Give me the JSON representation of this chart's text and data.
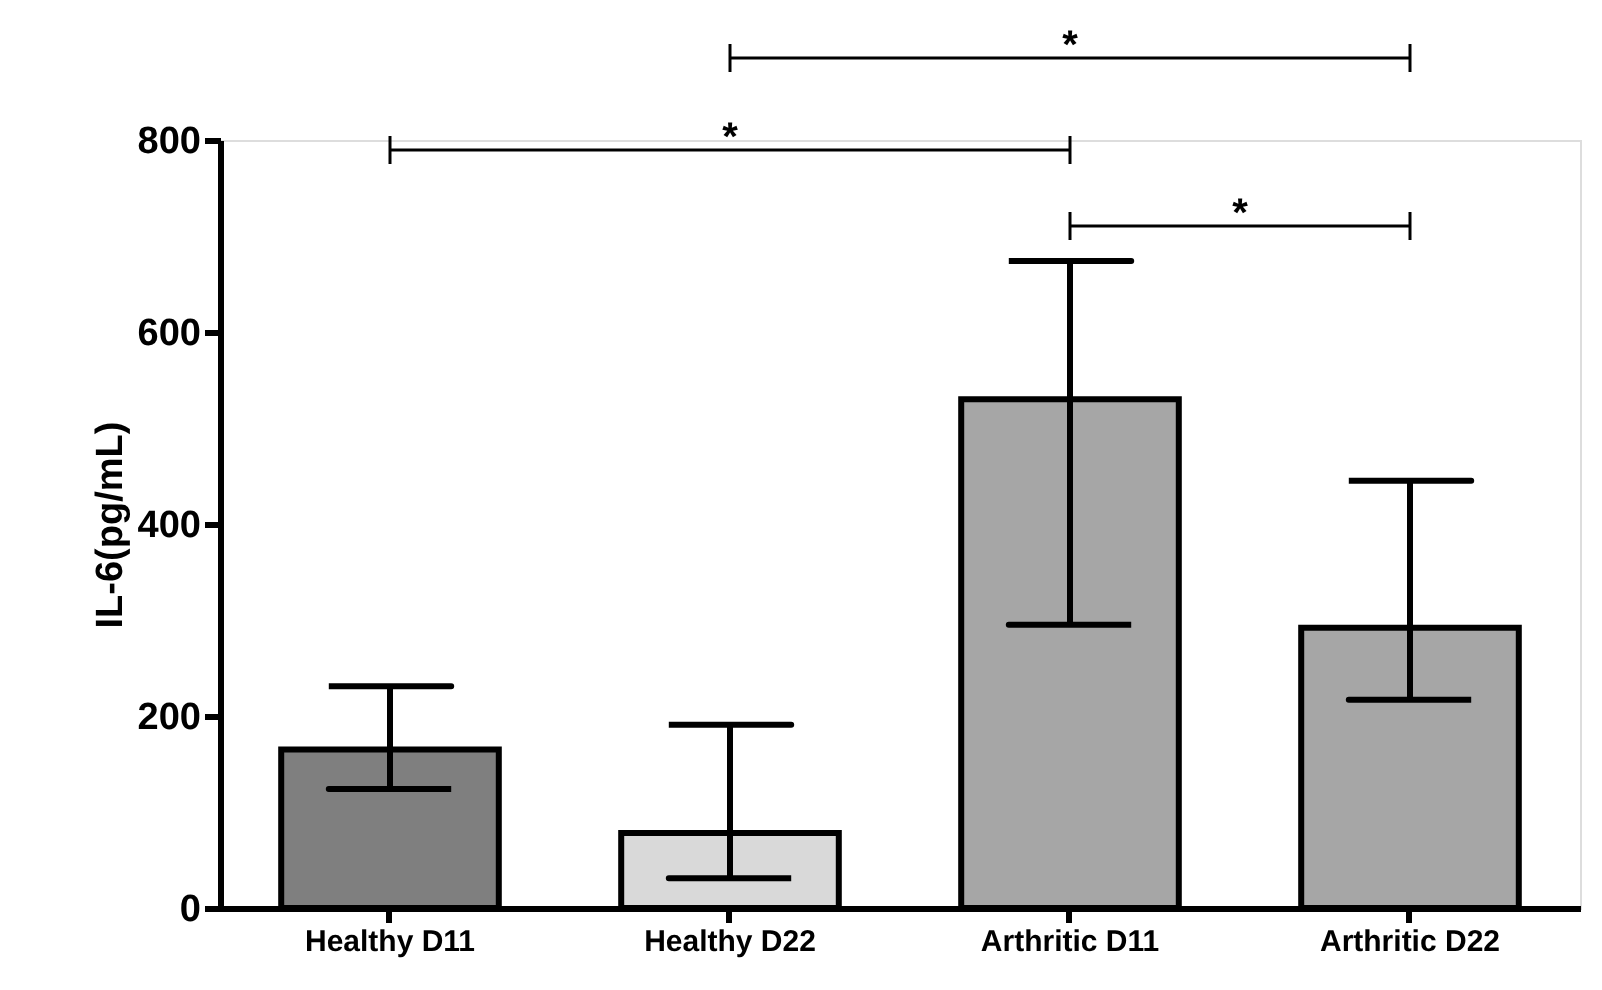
{
  "chart_data": {
    "type": "bar",
    "ylabel": "IL-6(pg/mL)",
    "categories": [
      "Healthy D11",
      "Healthy D22",
      "Arthritic D11",
      "Arthritic D22"
    ],
    "values": [
      165,
      78,
      530,
      292
    ],
    "errors": [
      [
        124,
        231
      ],
      [
        31,
        191
      ],
      [
        295,
        674
      ],
      [
        217,
        445
      ]
    ],
    "colors": [
      "#7f7f7f",
      "#d9d9d9",
      "#a6a6a6",
      "#a6a6a6"
    ],
    "ylim": [
      0,
      800
    ],
    "yticks": [
      0,
      200,
      400,
      600,
      800
    ],
    "grid": false,
    "annotations": [
      "*",
      "*",
      "*"
    ]
  }
}
